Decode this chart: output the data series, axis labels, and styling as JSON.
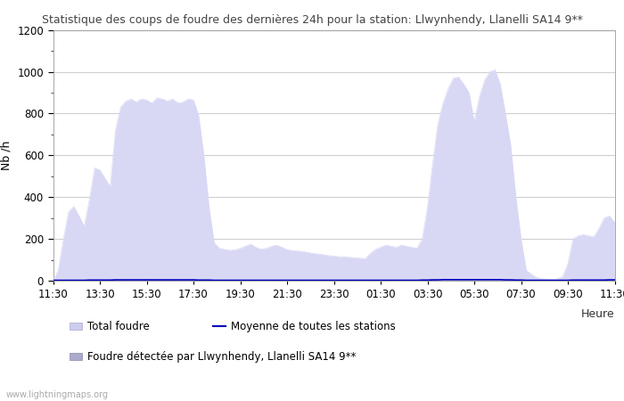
{
  "title": "Statistique des coups de foudre des dernières 24h pour la station: Llwynhendy, Llanelli SA14 9**",
  "ylabel": "Nb /h",
  "xlabel": "Heure",
  "watermark": "www.lightningmaps.org",
  "legend_total": "Total foudre",
  "legend_mean": "Moyenne de toutes les stations",
  "legend_detected": "Foudre détectée par Llwynhendy, Llanelli SA14 9**",
  "tick_labels": [
    "11:30",
    "13:30",
    "15:30",
    "17:30",
    "19:30",
    "21:30",
    "23:30",
    "01:30",
    "03:30",
    "05:30",
    "07:30",
    "09:30",
    "11:30"
  ],
  "ylim": [
    0,
    1200
  ],
  "yticks": [
    0,
    200,
    400,
    600,
    800,
    1000,
    1200
  ],
  "bg_color": "#ffffff",
  "plot_bg_color": "#ffffff",
  "grid_color": "#d0d0d0",
  "fill_color": "#d8d8f5",
  "line_mean_color": "#0000bb",
  "title_color": "#444444",
  "total_data": [
    0,
    50,
    200,
    330,
    355,
    310,
    260,
    390,
    540,
    530,
    490,
    450,
    720,
    830,
    860,
    870,
    855,
    870,
    865,
    850,
    875,
    870,
    860,
    870,
    850,
    855,
    870,
    865,
    790,
    600,
    350,
    180,
    155,
    150,
    145,
    148,
    155,
    165,
    175,
    160,
    150,
    155,
    165,
    170,
    160,
    148,
    145,
    142,
    140,
    135,
    130,
    128,
    125,
    120,
    118,
    115,
    115,
    112,
    110,
    108,
    105,
    130,
    150,
    160,
    170,
    165,
    160,
    170,
    165,
    160,
    155,
    200,
    350,
    560,
    750,
    850,
    920,
    970,
    975,
    940,
    900,
    760,
    880,
    960,
    1000,
    1010,
    940,
    800,
    650,
    400,
    200,
    50,
    30,
    15,
    10,
    8,
    5,
    10,
    20,
    80,
    200,
    215,
    220,
    215,
    210,
    250,
    300,
    310,
    280
  ],
  "mean_data": [
    2,
    2,
    2,
    2,
    2,
    2,
    2,
    3,
    3,
    3,
    3,
    3,
    4,
    4,
    4,
    4,
    4,
    4,
    4,
    4,
    4,
    4,
    4,
    4,
    4,
    4,
    4,
    4,
    3,
    3,
    3,
    2,
    2,
    2,
    2,
    2,
    2,
    2,
    2,
    2,
    2,
    2,
    2,
    2,
    2,
    2,
    2,
    2,
    2,
    2,
    2,
    2,
    2,
    2,
    2,
    2,
    2,
    2,
    2,
    2,
    2,
    2,
    2,
    2,
    2,
    2,
    2,
    2,
    2,
    2,
    2,
    3,
    3,
    4,
    4,
    5,
    5,
    5,
    5,
    5,
    5,
    5,
    5,
    5,
    5,
    5,
    5,
    4,
    4,
    3,
    3,
    2,
    2,
    2,
    2,
    2,
    2,
    2,
    2,
    2,
    3,
    3,
    3,
    3,
    3,
    3,
    3,
    4,
    4
  ]
}
